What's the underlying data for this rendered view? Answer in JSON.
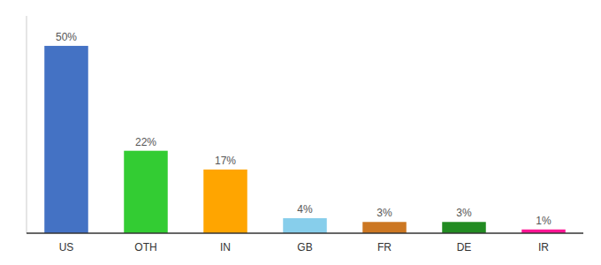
{
  "chart_data": {
    "type": "bar",
    "categories": [
      "US",
      "OTH",
      "IN",
      "GB",
      "FR",
      "DE",
      "IR"
    ],
    "values": [
      50,
      22,
      17,
      4,
      3,
      3,
      1
    ],
    "value_labels": [
      "50%",
      "22%",
      "17%",
      "4%",
      "3%",
      "3%",
      "1%"
    ],
    "data_labels": true,
    "colors": [
      "#4472C4",
      "#33CC33",
      "#FFA500",
      "#87CEEB",
      "#CC7722",
      "#228B22",
      "#FF1493"
    ],
    "ylim": [
      0,
      58
    ],
    "tick_labels": "x"
  }
}
